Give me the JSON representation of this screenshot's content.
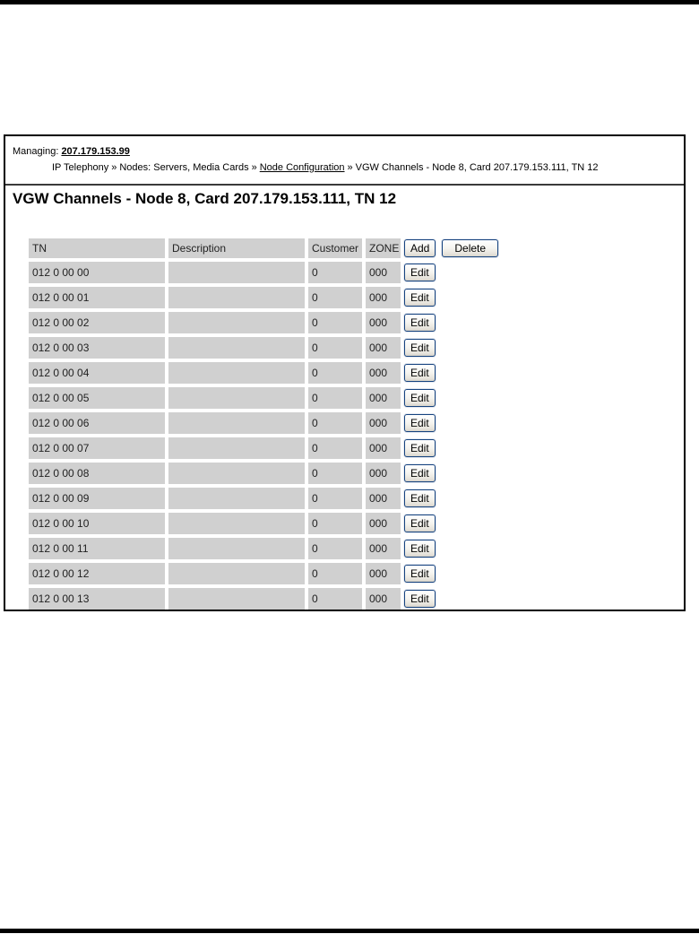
{
  "header": {
    "managing_label": "Managing:",
    "managing_ip": "207.179.153.99"
  },
  "breadcrumb": {
    "separator": "»",
    "items": [
      {
        "label": "IP Telephony"
      },
      {
        "label": "Nodes: Servers, Media Cards"
      },
      {
        "label": "Node Configuration"
      },
      {
        "label": "VGW Channels - Node 8, Card 207.179.153.111, TN 12"
      }
    ]
  },
  "title": "VGW Channels - Node 8, Card 207.179.153.111, TN 12",
  "table": {
    "headers": {
      "tn": "TN",
      "description": "Description",
      "customer": "Customer",
      "zone": "ZONE"
    },
    "actions": {
      "add": "Add",
      "delete": "Delete",
      "edit": "Edit"
    },
    "rows": [
      {
        "tn": "012 0 00 00",
        "description": "",
        "customer": "0",
        "zone": "000"
      },
      {
        "tn": "012 0 00 01",
        "description": "",
        "customer": "0",
        "zone": "000"
      },
      {
        "tn": "012 0 00 02",
        "description": "",
        "customer": "0",
        "zone": "000"
      },
      {
        "tn": "012 0 00 03",
        "description": "",
        "customer": "0",
        "zone": "000"
      },
      {
        "tn": "012 0 00 04",
        "description": "",
        "customer": "0",
        "zone": "000"
      },
      {
        "tn": "012 0 00 05",
        "description": "",
        "customer": "0",
        "zone": "000"
      },
      {
        "tn": "012 0 00 06",
        "description": "",
        "customer": "0",
        "zone": "000"
      },
      {
        "tn": "012 0 00 07",
        "description": "",
        "customer": "0",
        "zone": "000"
      },
      {
        "tn": "012 0 00 08",
        "description": "",
        "customer": "0",
        "zone": "000"
      },
      {
        "tn": "012 0 00 09",
        "description": "",
        "customer": "0",
        "zone": "000"
      },
      {
        "tn": "012 0 00 10",
        "description": "",
        "customer": "0",
        "zone": "000"
      },
      {
        "tn": "012 0 00 11",
        "description": "",
        "customer": "0",
        "zone": "000"
      },
      {
        "tn": "012 0 00 12",
        "description": "",
        "customer": "0",
        "zone": "000"
      },
      {
        "tn": "012 0 00 13",
        "description": "",
        "customer": "0",
        "zone": "000"
      }
    ]
  },
  "colors": {
    "cell_bg": "#d0d0d0",
    "button_border": "#16437f",
    "bar": "#000000",
    "frame_border": "#000000"
  }
}
